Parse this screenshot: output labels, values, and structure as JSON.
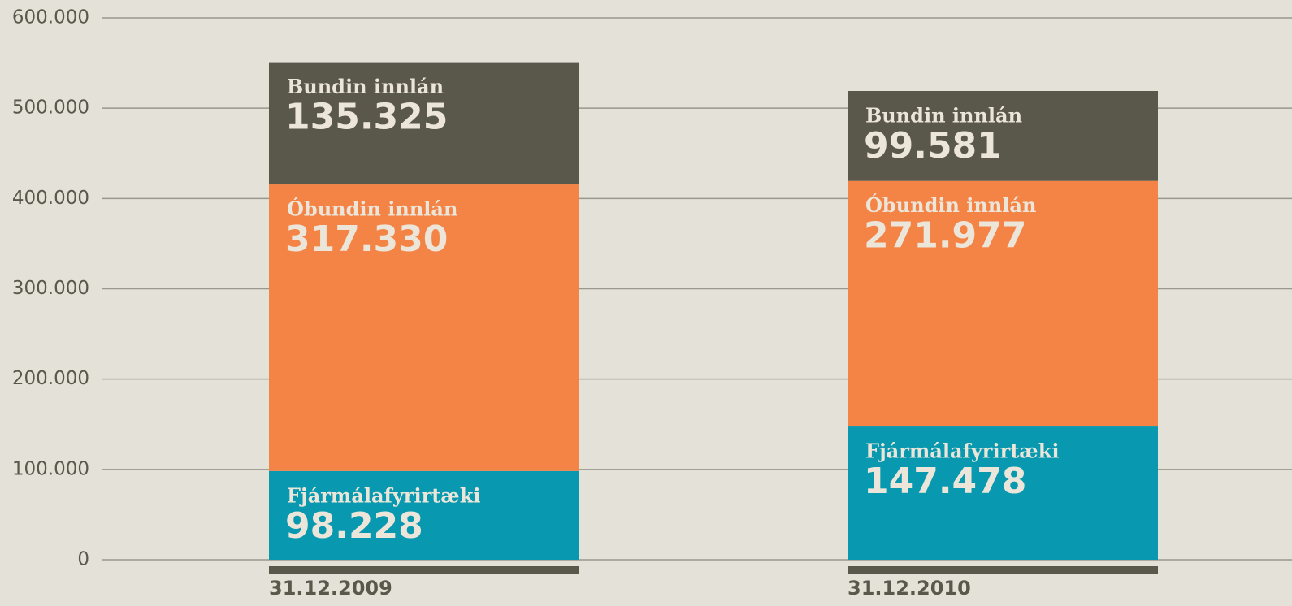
{
  "chart_data": {
    "type": "stacked_bar",
    "categories": [
      "31.12.2009",
      "31.12.2010"
    ],
    "series": [
      {
        "name": "Fjármálafyrirtæki",
        "color": "#0899b0",
        "values": [
          98228,
          147478
        ],
        "value_labels": [
          "98.228",
          "147.478"
        ]
      },
      {
        "name": "Óbundin innlán",
        "color": "#f48346",
        "values": [
          317330,
          271977
        ],
        "value_labels": [
          "317.330",
          "271.977"
        ]
      },
      {
        "name": "Bundin innlán",
        "color": "#59584b",
        "values": [
          135325,
          99581
        ],
        "value_labels": [
          "135.325",
          "99.581"
        ]
      }
    ],
    "ylim": [
      0,
      600000
    ],
    "yticks": [
      0,
      {
        "value": 100000,
        "label": "100.000"
      },
      {
        "value": 200000,
        "label": "200.000"
      },
      {
        "value": 300000,
        "label": "300.000"
      },
      {
        "value": 400000,
        "label": "400.000"
      },
      {
        "value": 500000,
        "label": "500.000"
      },
      {
        "value": 600000,
        "label": "600.000"
      }
    ],
    "grid": true
  }
}
